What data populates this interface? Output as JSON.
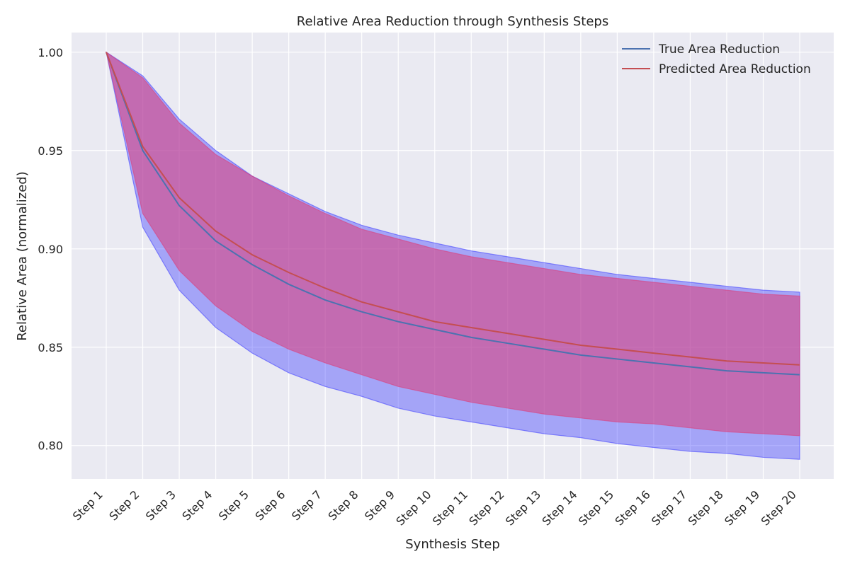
{
  "chart_data": {
    "type": "line",
    "title": "Relative Area Reduction through Synthesis Steps",
    "xlabel": "Synthesis Step",
    "ylabel": "Relative Area (normalized)",
    "categories": [
      "Step 1",
      "Step 2",
      "Step 3",
      "Step 4",
      "Step 5",
      "Step 6",
      "Step 7",
      "Step 8",
      "Step 9",
      "Step 10",
      "Step 11",
      "Step 12",
      "Step 13",
      "Step 14",
      "Step 15",
      "Step 16",
      "Step 17",
      "Step 18",
      "Step 19",
      "Step 20"
    ],
    "ylim": [
      0.783,
      1.01
    ],
    "yticks": [
      0.8,
      0.85,
      0.9,
      0.95,
      1.0
    ],
    "ytick_labels": [
      "0.80",
      "0.85",
      "0.90",
      "0.95",
      "1.00"
    ],
    "grid": true,
    "legend_position": "top-right",
    "series": [
      {
        "name": "True Area Reduction",
        "color": "#4c72b0",
        "values": [
          1.0,
          0.95,
          0.922,
          0.904,
          0.892,
          0.882,
          0.874,
          0.868,
          0.863,
          0.859,
          0.855,
          0.852,
          0.849,
          0.846,
          0.844,
          0.842,
          0.84,
          0.838,
          0.837,
          0.836
        ],
        "band_color": "#3b3bff",
        "band_lower": [
          1.0,
          0.911,
          0.879,
          0.86,
          0.847,
          0.837,
          0.83,
          0.825,
          0.819,
          0.815,
          0.812,
          0.809,
          0.806,
          0.804,
          0.801,
          0.799,
          0.797,
          0.796,
          0.794,
          0.793
        ],
        "band_upper": [
          1.0,
          0.988,
          0.966,
          0.95,
          0.937,
          0.928,
          0.919,
          0.912,
          0.907,
          0.903,
          0.899,
          0.896,
          0.893,
          0.89,
          0.887,
          0.885,
          0.883,
          0.881,
          0.879,
          0.878
        ]
      },
      {
        "name": "Predicted Area Reduction",
        "color": "#c44e52",
        "values": [
          1.0,
          0.952,
          0.926,
          0.909,
          0.897,
          0.888,
          0.88,
          0.873,
          0.868,
          0.863,
          0.86,
          0.857,
          0.854,
          0.851,
          0.849,
          0.847,
          0.845,
          0.843,
          0.842,
          0.841
        ],
        "band_color": "#dd3c78",
        "band_lower": [
          1.0,
          0.918,
          0.889,
          0.871,
          0.858,
          0.849,
          0.842,
          0.836,
          0.83,
          0.826,
          0.822,
          0.819,
          0.816,
          0.814,
          0.812,
          0.811,
          0.809,
          0.807,
          0.806,
          0.805
        ],
        "band_upper": [
          1.0,
          0.987,
          0.964,
          0.948,
          0.937,
          0.927,
          0.918,
          0.91,
          0.905,
          0.9,
          0.896,
          0.893,
          0.89,
          0.887,
          0.885,
          0.883,
          0.881,
          0.879,
          0.877,
          0.876
        ]
      }
    ]
  }
}
